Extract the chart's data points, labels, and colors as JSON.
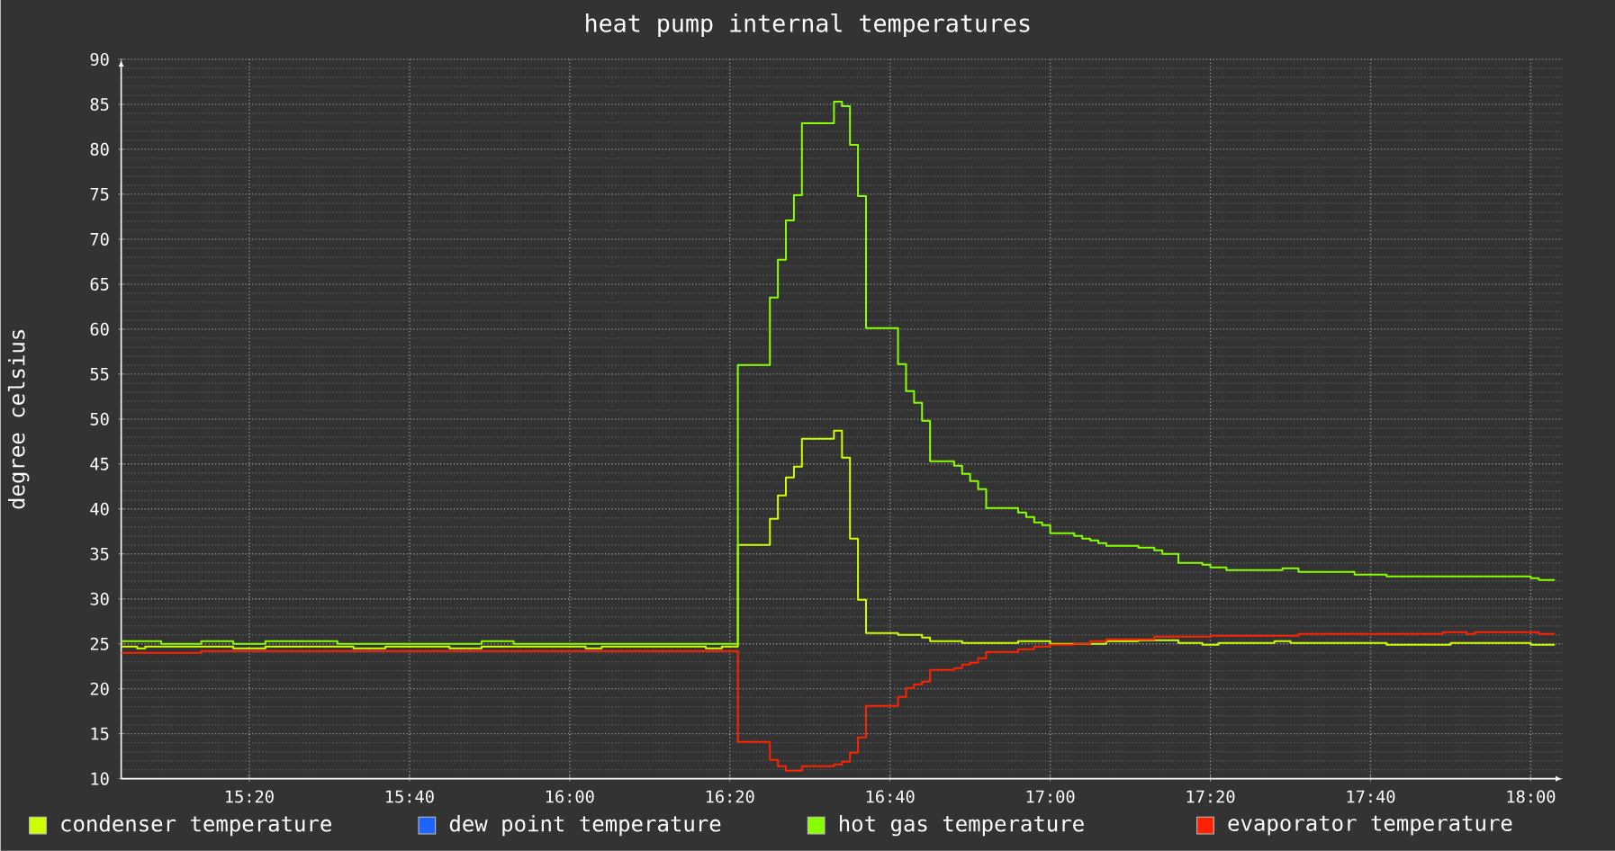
{
  "chart_data": {
    "type": "step",
    "title": "heat pump internal temperatures",
    "ylabel": "degree celsius",
    "xlim": [
      15.0667,
      18.0667
    ],
    "xticks": [
      {
        "value": 15.3333,
        "label": "15:20"
      },
      {
        "value": 15.6667,
        "label": "15:40"
      },
      {
        "value": 16.0,
        "label": "16:00"
      },
      {
        "value": 16.3333,
        "label": "16:20"
      },
      {
        "value": 16.6667,
        "label": "16:40"
      },
      {
        "value": 17.0,
        "label": "17:00"
      },
      {
        "value": 17.3333,
        "label": "17:20"
      },
      {
        "value": 17.6667,
        "label": "17:40"
      },
      {
        "value": 18.0,
        "label": "18:00"
      }
    ],
    "ylim": [
      10,
      90
    ],
    "yticks": [
      10,
      15,
      20,
      25,
      30,
      35,
      40,
      45,
      50,
      55,
      60,
      65,
      70,
      75,
      80,
      85,
      90
    ],
    "grid": true,
    "legend": "bottom",
    "series": [
      {
        "name": "condenser temperature",
        "color": "#ccff00",
        "x": [
          15.0667,
          15.1,
          15.1167,
          15.3,
          15.3667,
          15.55,
          15.6167,
          15.75,
          15.8167,
          16.0333,
          16.0667,
          16.2833,
          16.3167,
          16.35,
          16.4167,
          16.4333,
          16.45,
          16.4667,
          16.4833,
          16.55,
          16.5667,
          16.5833,
          16.6,
          16.6167,
          16.6833,
          16.7333,
          16.75,
          16.8167,
          16.9333,
          17.0,
          17.1167,
          17.1833,
          17.2667,
          17.3167,
          17.35,
          17.4667,
          17.5,
          17.7,
          17.8333,
          18.0,
          18.05
        ],
        "values": [
          24.7,
          24.5,
          24.7,
          24.5,
          24.7,
          24.5,
          24.7,
          24.5,
          24.7,
          24.5,
          24.7,
          24.5,
          24.7,
          36.0,
          38.9,
          41.5,
          43.5,
          44.7,
          47.8,
          48.7,
          45.7,
          36.7,
          29.9,
          26.2,
          26.0,
          25.7,
          25.3,
          25.1,
          25.3,
          25.0,
          25.3,
          25.4,
          25.1,
          24.9,
          25.1,
          25.3,
          25.1,
          24.9,
          25.1,
          24.9,
          24.9
        ]
      },
      {
        "name": "dew point temperature",
        "color": "#1e64ff"
      },
      {
        "name": "hot gas temperature",
        "color": "#88ff00",
        "x": [
          15.0667,
          15.15,
          15.2333,
          15.3,
          15.3667,
          15.5167,
          15.8167,
          15.8833,
          16.35,
          16.4167,
          16.4333,
          16.45,
          16.4667,
          16.4833,
          16.55,
          16.5667,
          16.5833,
          16.6,
          16.6167,
          16.6833,
          16.7,
          16.7167,
          16.7333,
          16.75,
          16.8,
          16.8167,
          16.8333,
          16.85,
          16.8667,
          16.9333,
          16.95,
          16.9667,
          16.9833,
          17.0,
          17.05,
          17.0667,
          17.0833,
          17.1,
          17.1167,
          17.1833,
          17.2167,
          17.2333,
          17.2667,
          17.3167,
          17.3333,
          17.3667,
          17.4833,
          17.5167,
          17.6333,
          17.7,
          18.0,
          18.0167,
          18.05
        ],
        "values": [
          25.3,
          25.0,
          25.3,
          25.0,
          25.3,
          25.0,
          25.3,
          25.0,
          56.0,
          63.5,
          67.7,
          72.1,
          74.9,
          82.9,
          85.3,
          84.8,
          80.5,
          74.8,
          60.1,
          56.1,
          53.1,
          51.8,
          49.8,
          45.3,
          44.8,
          43.9,
          43.1,
          42.2,
          40.1,
          39.6,
          39.1,
          38.5,
          38.2,
          37.3,
          37.0,
          36.7,
          36.5,
          36.2,
          35.9,
          35.7,
          35.4,
          35.0,
          34.0,
          33.8,
          33.5,
          33.2,
          33.4,
          33.0,
          32.7,
          32.5,
          32.3,
          32.1,
          32.1
        ]
      },
      {
        "name": "evaporator temperature",
        "color": "#ff2200",
        "x": [
          15.0667,
          15.2333,
          16.35,
          16.4167,
          16.4333,
          16.45,
          16.4833,
          16.55,
          16.5667,
          16.5833,
          16.6,
          16.6167,
          16.6833,
          16.7,
          16.7167,
          16.7333,
          16.75,
          16.8,
          16.8167,
          16.8333,
          16.85,
          16.8667,
          16.9333,
          16.9667,
          17.0,
          17.05,
          17.0833,
          17.1167,
          17.2167,
          17.3333,
          17.5167,
          17.8167,
          17.8667,
          17.8833,
          18.0167,
          18.05
        ],
        "values": [
          24.0,
          24.2,
          14.1,
          12.1,
          11.4,
          10.9,
          11.4,
          11.6,
          11.9,
          12.9,
          14.6,
          18.1,
          19.1,
          20.1,
          20.5,
          20.8,
          22.1,
          22.3,
          22.7,
          22.9,
          23.4,
          24.1,
          24.4,
          24.7,
          24.9,
          25.0,
          25.3,
          25.5,
          25.8,
          25.9,
          26.1,
          26.3,
          26.1,
          26.3,
          26.1,
          26.1
        ]
      }
    ]
  }
}
